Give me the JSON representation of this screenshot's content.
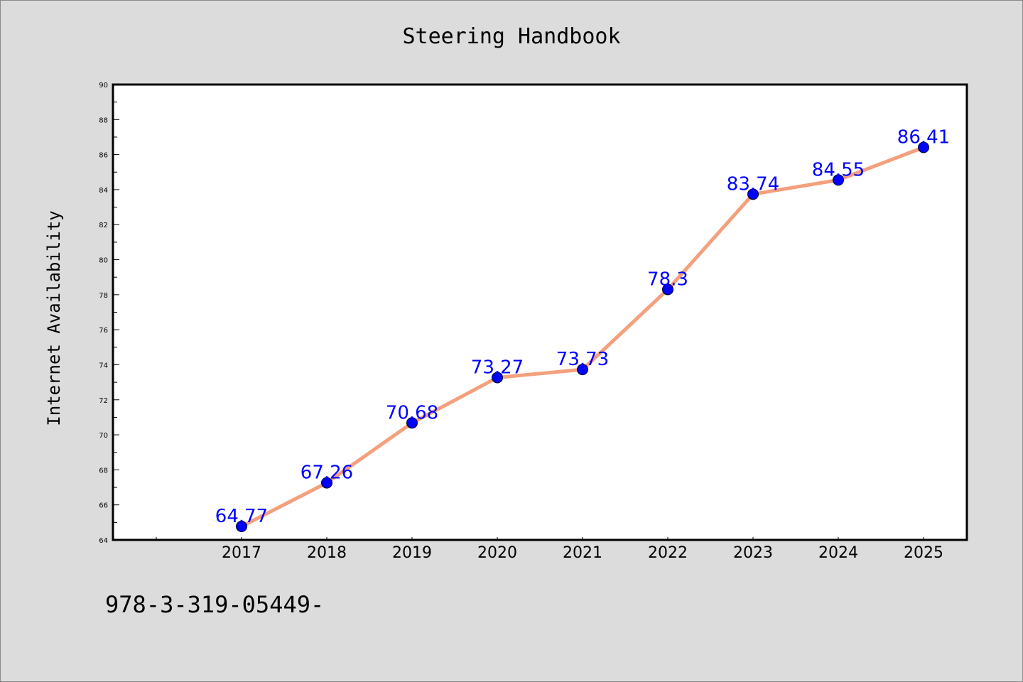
{
  "chart_data": {
    "type": "line",
    "title": "Steering Handbook",
    "xlabel": "",
    "ylabel": "Internet Availability",
    "categories": [
      "2017",
      "2018",
      "2019",
      "2020",
      "2021",
      "2022",
      "2023",
      "2024",
      "2025"
    ],
    "series": [
      {
        "values": [
          64.77,
          67.26,
          70.68,
          73.27,
          73.73,
          78.3,
          83.74,
          84.55,
          86.41
        ],
        "data_labels": [
          "64.77",
          "67.26",
          "70.68",
          "73.27",
          "73.73",
          "78.3",
          "83.74",
          "84.55",
          "86.41"
        ],
        "line_color": "#f4a07d",
        "marker_color": "#0000ff",
        "label_color": "#0000ff"
      }
    ],
    "ylim": [
      64,
      90
    ],
    "y_ticks": [
      "64",
      "66",
      "68",
      "70",
      "72",
      "74",
      "76",
      "78",
      "80",
      "82",
      "84",
      "86",
      "88",
      "90"
    ],
    "grid": false,
    "legend": "none"
  },
  "footer": {
    "code": "978-3-319-05449-"
  },
  "colors": {
    "background": "#dcdcdc",
    "plot_area": "#ffffff"
  }
}
